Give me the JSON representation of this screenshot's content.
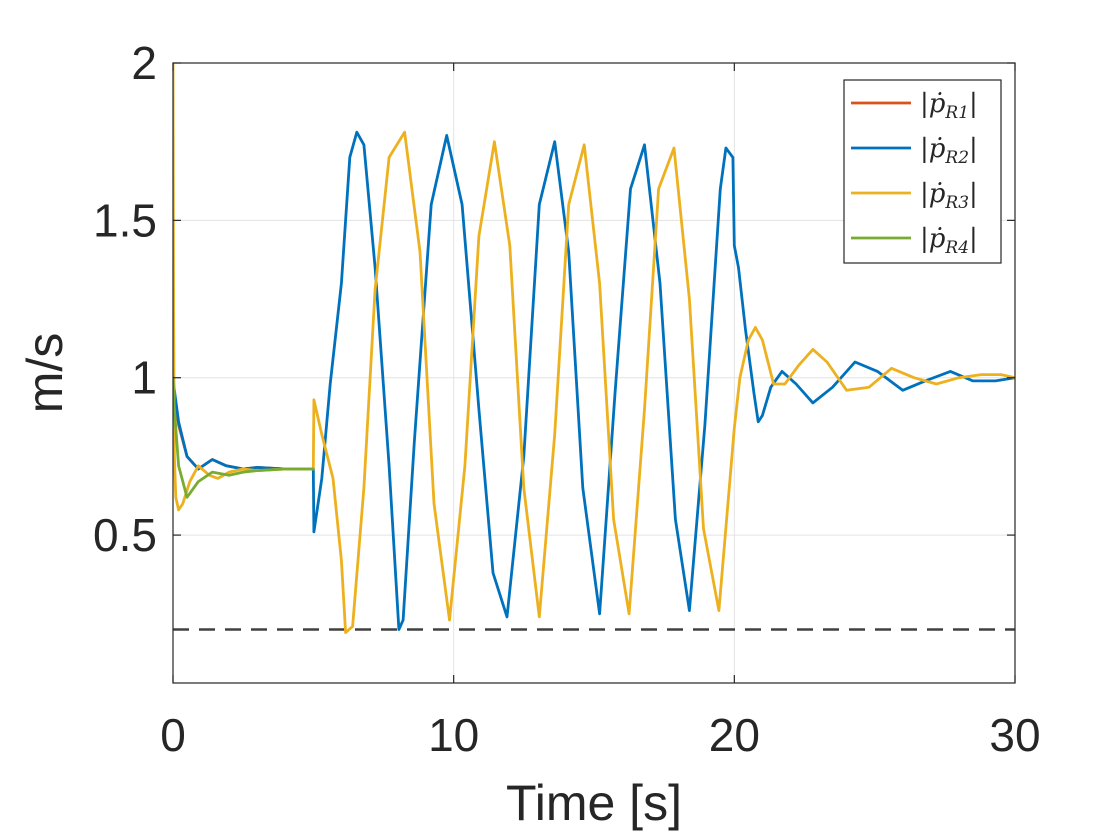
{
  "chart_data": {
    "type": "line",
    "title": "",
    "xlabel": "Time [s]",
    "ylabel": "m/s",
    "xlim": [
      0,
      30
    ],
    "ylim": [
      0.03,
      2.0
    ],
    "xticks": [
      0,
      10,
      20,
      30
    ],
    "xtick_labels": [
      "0",
      "10",
      "20",
      "30"
    ],
    "yticks": [
      0.5,
      1,
      1.5,
      2
    ],
    "ytick_labels": [
      "0.5",
      "1",
      "1.5",
      "2"
    ],
    "grid": true,
    "legend_position": "top-right",
    "threshold": {
      "y": 0.2,
      "style": "dashed",
      "color": "#404040"
    },
    "series": [
      {
        "name": "|ṗR1|",
        "legend_base": "ṗ",
        "legend_sub": "R1",
        "color": "#D95319",
        "x": [
          0.0,
          0.05,
          0.2,
          0.5,
          0.9,
          1.4,
          1.9,
          2.5,
          3.0,
          4.0,
          5.0
        ],
        "y": [
          1.0,
          0.95,
          0.85,
          0.75,
          0.71,
          0.74,
          0.72,
          0.71,
          0.715,
          0.71,
          0.71
        ]
      },
      {
        "name": "|ṗR2|",
        "legend_base": "ṗ",
        "legend_sub": "R2",
        "color": "#0072BD",
        "x": [
          0.0,
          0.05,
          0.2,
          0.5,
          0.9,
          1.4,
          1.9,
          2.5,
          3.0,
          4.0,
          5.0,
          5.02,
          5.3,
          5.6,
          6.0,
          6.3,
          6.55,
          6.8,
          7.2,
          7.7,
          8.05,
          8.2,
          8.6,
          9.2,
          9.75,
          10.3,
          10.9,
          11.4,
          11.9,
          12.5,
          13.05,
          13.6,
          14.1,
          14.6,
          15.2,
          15.75,
          16.3,
          16.8,
          17.35,
          17.9,
          18.4,
          18.95,
          19.5,
          19.7,
          19.95,
          20.0,
          20.15,
          20.4,
          20.7,
          20.85,
          21.0,
          21.3,
          21.7,
          22.2,
          22.8,
          23.5,
          24.3,
          25.1,
          26.0,
          26.8,
          27.7,
          28.5,
          29.3,
          30.0
        ],
        "y": [
          1.0,
          0.96,
          0.86,
          0.75,
          0.71,
          0.74,
          0.72,
          0.71,
          0.715,
          0.71,
          0.71,
          0.51,
          0.68,
          0.98,
          1.3,
          1.7,
          1.78,
          1.74,
          1.35,
          0.72,
          0.2,
          0.23,
          0.8,
          1.55,
          1.77,
          1.55,
          0.9,
          0.38,
          0.24,
          0.75,
          1.55,
          1.75,
          1.4,
          0.65,
          0.25,
          0.95,
          1.6,
          1.74,
          1.3,
          0.55,
          0.26,
          0.85,
          1.6,
          1.73,
          1.7,
          1.42,
          1.35,
          1.15,
          0.95,
          0.86,
          0.88,
          0.97,
          1.02,
          0.98,
          0.92,
          0.97,
          1.05,
          1.02,
          0.96,
          0.99,
          1.02,
          0.99,
          0.99,
          1.0
        ]
      },
      {
        "name": "|ṗR3|",
        "legend_base": "ṗ",
        "legend_sub": "R3",
        "color": "#EDB120",
        "x": [
          0.0,
          0.02,
          0.05,
          0.1,
          0.2,
          0.35,
          0.6,
          0.9,
          1.3,
          1.6,
          2.0,
          2.5,
          3.0,
          4.0,
          5.0,
          5.02,
          5.3,
          5.7,
          6.0,
          6.15,
          6.4,
          6.8,
          7.2,
          7.7,
          8.25,
          8.8,
          9.3,
          9.85,
          10.4,
          10.9,
          11.45,
          12.0,
          12.5,
          13.05,
          13.6,
          14.1,
          14.65,
          15.2,
          15.7,
          16.25,
          16.8,
          17.3,
          17.85,
          18.4,
          18.9,
          19.45,
          20.0,
          20.2,
          20.5,
          20.75,
          21.0,
          21.4,
          21.8,
          22.3,
          22.8,
          23.3,
          24.0,
          24.8,
          25.6,
          26.4,
          27.2,
          28.0,
          28.8,
          29.5,
          30.0
        ],
        "y": [
          2.0,
          1.2,
          0.75,
          0.62,
          0.58,
          0.6,
          0.67,
          0.72,
          0.69,
          0.68,
          0.7,
          0.71,
          0.705,
          0.71,
          0.71,
          0.93,
          0.82,
          0.68,
          0.42,
          0.19,
          0.21,
          0.65,
          1.28,
          1.7,
          1.78,
          1.4,
          0.6,
          0.23,
          0.72,
          1.45,
          1.75,
          1.42,
          0.65,
          0.24,
          0.82,
          1.55,
          1.74,
          1.3,
          0.55,
          0.25,
          0.9,
          1.6,
          1.73,
          1.25,
          0.52,
          0.26,
          0.84,
          1.0,
          1.12,
          1.16,
          1.12,
          0.98,
          0.98,
          1.04,
          1.09,
          1.05,
          0.96,
          0.97,
          1.03,
          1.0,
          0.98,
          1.0,
          1.01,
          1.01,
          1.0
        ]
      },
      {
        "name": "|ṗR4|",
        "legend_base": "ṗ",
        "legend_sub": "R4",
        "color": "#77AC30",
        "x": [
          0.0,
          0.05,
          0.2,
          0.5,
          0.9,
          1.4,
          2.0,
          2.5,
          3.0,
          4.0,
          5.0
        ],
        "y": [
          1.0,
          0.9,
          0.72,
          0.62,
          0.67,
          0.7,
          0.69,
          0.7,
          0.705,
          0.71,
          0.71
        ]
      }
    ]
  }
}
